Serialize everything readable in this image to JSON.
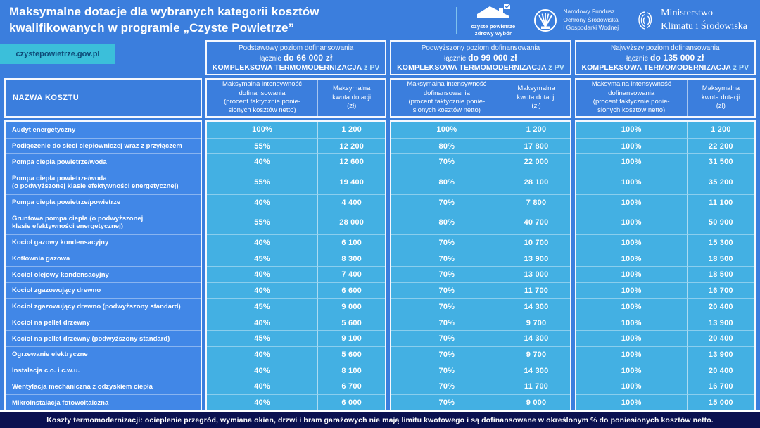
{
  "header": {
    "title": "Maksymalne dotacje dla wybranych kategorii kosztów\nkwalifikowanych w programie „Czyste Powietrze”",
    "logos": {
      "czyste_powietrze": {
        "line1": "czyste powietrze",
        "line2": "zdrowy wybór"
      },
      "nfosigw": {
        "text": "Narodowy Fundusz\nOchrony Środowiska\ni Gospodarki Wodnej"
      },
      "ministry": {
        "text": "Ministerstwo\nKlimatu i Środowiska"
      }
    }
  },
  "badge": "czystepowietrze.gov.pl",
  "table": {
    "name_header": "NAZWA KOSZTU",
    "sub_headers": {
      "intensity": "Maksymalna intensywność\ndofinansowania\n(procent faktycznie ponie-\nsionych kosztów netto)",
      "amount": "Maksymalna\nkwota dotacji\n(zł)"
    },
    "groups": [
      {
        "level": "Podstawowy poziom dofinansowania",
        "total_prefix": "łącznie",
        "total_bold": "do 66 000 zł",
        "komplex": "KOMPLEKSOWA TERMOMODERNIZACJA",
        "pv": "z PV"
      },
      {
        "level": "Podwyższony poziom dofinansowania",
        "total_prefix": "łącznie",
        "total_bold": "do 99 000 zł",
        "komplex": "KOMPLEKSOWA TERMOMODERNIZACJA",
        "pv": "z PV"
      },
      {
        "level": "Najwyższy poziom dofinansowania",
        "total_prefix": "łącznie",
        "total_bold": "do 135 000 zł",
        "komplex": "KOMPLEKSOWA TERMOMODERNIZACJA",
        "pv": "z PV"
      }
    ],
    "rows": [
      {
        "name": "Audyt energetyczny",
        "values": [
          "100%",
          "1 200",
          "100%",
          "1 200",
          "100%",
          "1 200"
        ]
      },
      {
        "name": "Podłączenie do sieci ciepłowniczej wraz z przyłączem",
        "values": [
          "55%",
          "12 200",
          "80%",
          "17 800",
          "100%",
          "22 200"
        ]
      },
      {
        "name": "Pompa ciepła powietrze/woda",
        "values": [
          "40%",
          "12 600",
          "70%",
          "22 000",
          "100%",
          "31 500"
        ]
      },
      {
        "name": "Pompa ciepła powietrze/woda\n(o podwyższonej klasie efektywności energetycznej)",
        "values": [
          "55%",
          "19 400",
          "80%",
          "28 100",
          "100%",
          "35 200"
        ]
      },
      {
        "name": "Pompa ciepła powietrze/powietrze",
        "values": [
          "40%",
          "4 400",
          "70%",
          "7 800",
          "100%",
          "11 100"
        ]
      },
      {
        "name": "Gruntowa pompa ciepła (o podwyższonej\nklasie efektywności energetycznej)",
        "values": [
          "55%",
          "28 000",
          "80%",
          "40 700",
          "100%",
          "50 900"
        ]
      },
      {
        "name": "Kocioł gazowy kondensacyjny",
        "values": [
          "40%",
          "6 100",
          "70%",
          "10 700",
          "100%",
          "15 300"
        ]
      },
      {
        "name": "Kotłownia gazowa",
        "values": [
          "45%",
          "8 300",
          "70%",
          "13 900",
          "100%",
          "18 500"
        ]
      },
      {
        "name": "Kocioł olejowy kondensacyjny",
        "values": [
          "40%",
          "7 400",
          "70%",
          "13 000",
          "100%",
          "18 500"
        ]
      },
      {
        "name": "Kocioł zgazowujący drewno",
        "values": [
          "40%",
          "6 600",
          "70%",
          "11 700",
          "100%",
          "16 700"
        ]
      },
      {
        "name": "Kocioł zgazowujący drewno (podwyższony standard)",
        "values": [
          "45%",
          "9 000",
          "70%",
          "14 300",
          "100%",
          "20 400"
        ]
      },
      {
        "name": "Kocioł na pellet drzewny",
        "values": [
          "40%",
          "5 600",
          "70%",
          "9 700",
          "100%",
          "13 900"
        ]
      },
      {
        "name": "Kocioł na pellet drzewny (podwyższony standard)",
        "values": [
          "45%",
          "9 100",
          "70%",
          "14 300",
          "100%",
          "20 400"
        ]
      },
      {
        "name": "Ogrzewanie elektryczne",
        "values": [
          "40%",
          "5 600",
          "70%",
          "9 700",
          "100%",
          "13 900"
        ]
      },
      {
        "name": "Instalacja c.o. i c.w.u.",
        "values": [
          "40%",
          "8 100",
          "70%",
          "14 300",
          "100%",
          "20 400"
        ]
      },
      {
        "name": "Wentylacja mechaniczna z odzyskiem ciepła",
        "values": [
          "40%",
          "6 700",
          "70%",
          "11 700",
          "100%",
          "16 700"
        ]
      },
      {
        "name": "Mikroinstalacja fotowoltaiczna",
        "values": [
          "40%",
          "6 000",
          "70%",
          "9 000",
          "100%",
          "15 000"
        ]
      }
    ]
  },
  "footer": "Koszty termomodernizacji: ocieplenie przegród, wymiana okien, drzwi i bram garażowych nie mają limitu kwotowego i są dofinansowane w określonym % do poniesionych kosztów netto."
}
